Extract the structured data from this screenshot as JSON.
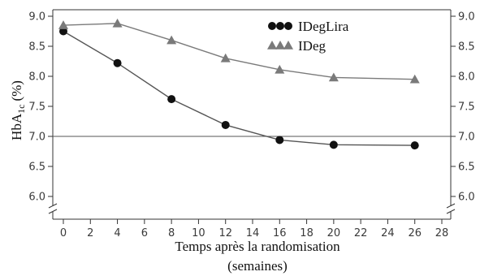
{
  "chart_data": {
    "type": "line",
    "xlabel": "Temps après la randomisation",
    "xlabel_unit": "(semaines)",
    "ylabel": "HbA",
    "ylabel_subscript": "1c",
    "ylabel_unit": "(%)",
    "x_ticks": [
      "0",
      "2",
      "4",
      "6",
      "8",
      "10",
      "12",
      "14",
      "16",
      "18",
      "20",
      "22",
      "24",
      "26",
      "28"
    ],
    "y_ticks": [
      "6.0",
      "6.5",
      "7.0",
      "7.5",
      "8.0",
      "8.5",
      "9.0"
    ],
    "xlim": [
      0,
      28
    ],
    "ylim": [
      6.0,
      9.0
    ],
    "axis_break": true,
    "reference_line_y": 7.0,
    "legend_position": "top-center",
    "series": [
      {
        "name": "IDegLira",
        "marker": "circle",
        "color": "#111111",
        "line_color": "#555555",
        "x": [
          0,
          4,
          8,
          12,
          16,
          20,
          26
        ],
        "values": [
          8.75,
          8.22,
          7.62,
          7.19,
          6.94,
          6.86,
          6.85
        ]
      },
      {
        "name": "IDeg",
        "marker": "triangle",
        "color": "#7a7a7a",
        "line_color": "#7a7a7a",
        "x": [
          0,
          4,
          8,
          12,
          16,
          20,
          26
        ],
        "values": [
          8.85,
          8.88,
          8.6,
          8.3,
          8.11,
          7.98,
          7.95
        ]
      }
    ]
  }
}
